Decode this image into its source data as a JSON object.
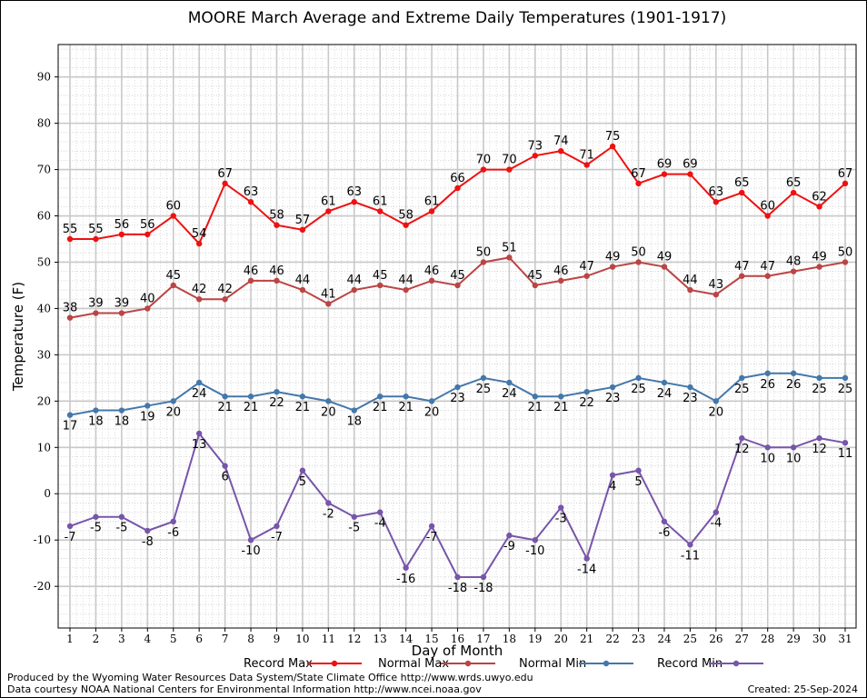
{
  "chart_data": {
    "type": "line",
    "title": "MOORE March Average and Extreme Daily Temperatures (1901-1917)",
    "xlabel": "Day of Month",
    "ylabel": "Temperature (F)",
    "xlim": [
      1,
      31
    ],
    "ylim": [
      -29,
      97
    ],
    "yticks": [
      -20,
      -10,
      0,
      10,
      20,
      30,
      40,
      50,
      60,
      70,
      80,
      90
    ],
    "x": [
      1,
      2,
      3,
      4,
      5,
      6,
      7,
      8,
      9,
      10,
      11,
      12,
      13,
      14,
      15,
      16,
      17,
      18,
      19,
      20,
      21,
      22,
      23,
      24,
      25,
      26,
      27,
      28,
      29,
      30,
      31
    ],
    "grid": true,
    "legend_position": "bottom",
    "series": [
      {
        "name": "Record Max",
        "color": "#ee1111",
        "label_position": "above",
        "values": [
          55,
          55,
          56,
          56,
          60,
          54,
          67,
          63,
          58,
          57,
          61,
          63,
          61,
          58,
          61,
          66,
          70,
          70,
          73,
          74,
          71,
          75,
          67,
          69,
          69,
          63,
          65,
          60,
          65,
          62,
          67
        ]
      },
      {
        "name": "Normal Max",
        "color": "#bb4444",
        "label_position": "above",
        "values": [
          38,
          39,
          39,
          40,
          45,
          42,
          42,
          46,
          46,
          44,
          41,
          44,
          45,
          44,
          46,
          45,
          50,
          51,
          45,
          46,
          47,
          49,
          50,
          49,
          44,
          43,
          47,
          47,
          48,
          49,
          50
        ]
      },
      {
        "name": "Normal Min",
        "color": "#4477aa",
        "label_position": "below",
        "values": [
          17,
          18,
          18,
          19,
          20,
          24,
          21,
          21,
          22,
          21,
          20,
          18,
          21,
          21,
          20,
          23,
          25,
          24,
          21,
          21,
          22,
          23,
          25,
          24,
          23,
          20,
          25,
          26,
          26,
          25,
          25
        ]
      },
      {
        "name": "Record Min",
        "color": "#7755aa",
        "label_position": "below",
        "values": [
          -7,
          -5,
          -5,
          -8,
          -6,
          13,
          6,
          -10,
          -7,
          5,
          -2,
          -5,
          -4,
          -16,
          -7,
          -18,
          -18,
          -9,
          -10,
          -3,
          -14,
          4,
          5,
          -6,
          -11,
          -4,
          12,
          10,
          10,
          12,
          11
        ]
      }
    ]
  },
  "footer": {
    "produced_by": "Produced by the Wyoming Water Resources Data System/State Climate Office http://www.wrds.uwyo.edu",
    "courtesy": "Data courtesy NOAA National Centers for Environmental Information http://www.ncei.noaa.gov",
    "created": "Created: 25-Sep-2024"
  }
}
